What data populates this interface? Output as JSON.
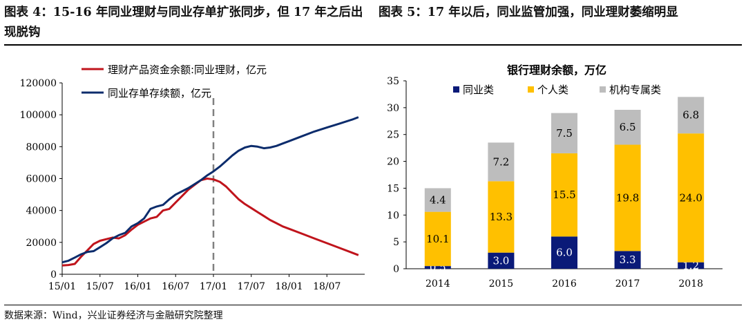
{
  "header": {
    "left_title": "图表 4：15-16 年同业理财与同业存单扩张同步，但 17 年之后出现脱钩",
    "right_title": "图表 5：17 年以后，同业监管加强，同业理财萎缩明显"
  },
  "footer": {
    "source": "数据来源：Wind，兴业证券经济与金融研究院整理"
  },
  "colors": {
    "red": "#c0141c",
    "navy": "#0c2c6c",
    "bar_navy": "#0a1a78",
    "yellow": "#ffc000",
    "gray": "#bdbdbd",
    "dashed": "#808080"
  },
  "chart_data": [
    {
      "type": "line",
      "title": "",
      "x_ticks": [
        "15/01",
        "15/07",
        "16/01",
        "16/07",
        "17/01",
        "17/07",
        "18/01",
        "18/07"
      ],
      "y_ticks": [
        "0",
        "20000",
        "40000",
        "60000",
        "80000",
        "100000",
        "120000"
      ],
      "ylim": [
        0,
        120000
      ],
      "xlim": [
        "2015-01",
        "2019-01"
      ],
      "vertical_marker": "17/01",
      "series": [
        {
          "name": "理财产品资金余额:同业理财，亿元",
          "color": "#c0141c",
          "points": [
            [
              "2015-01",
              5500
            ],
            [
              "2015-02",
              5800
            ],
            [
              "2015-03",
              6500
            ],
            [
              "2015-04",
              11000
            ],
            [
              "2015-05",
              15000
            ],
            [
              "2015-06",
              19000
            ],
            [
              "2015-07",
              21000
            ],
            [
              "2015-08",
              22000
            ],
            [
              "2015-09",
              23000
            ],
            [
              "2015-10",
              22500
            ],
            [
              "2015-11",
              24500
            ],
            [
              "2015-12",
              28000
            ],
            [
              "2016-01",
              31000
            ],
            [
              "2016-02",
              33000
            ],
            [
              "2016-03",
              35000
            ],
            [
              "2016-04",
              36000
            ],
            [
              "2016-05",
              40000
            ],
            [
              "2016-06",
              41000
            ],
            [
              "2016-07",
              45000
            ],
            [
              "2016-08",
              49000
            ],
            [
              "2016-09",
              53000
            ],
            [
              "2016-10",
              56000
            ],
            [
              "2016-11",
              59000
            ],
            [
              "2016-12",
              60000
            ],
            [
              "2017-01",
              59500
            ],
            [
              "2017-02",
              58000
            ],
            [
              "2017-03",
              55000
            ],
            [
              "2017-04",
              51000
            ],
            [
              "2017-05",
              47000
            ],
            [
              "2017-06",
              44000
            ],
            [
              "2017-07",
              41500
            ],
            [
              "2017-08",
              39000
            ],
            [
              "2017-09",
              36500
            ],
            [
              "2017-10",
              34000
            ],
            [
              "2017-11",
              32000
            ],
            [
              "2017-12",
              30000
            ],
            [
              "2018-01",
              28500
            ],
            [
              "2018-03",
              25500
            ],
            [
              "2018-05",
              22500
            ],
            [
              "2018-07",
              19500
            ],
            [
              "2018-09",
              16500
            ],
            [
              "2018-11",
              13500
            ],
            [
              "2018-12",
              12000
            ]
          ]
        },
        {
          "name": "同业存单存续额，亿元",
          "color": "#0c2c6c",
          "points": [
            [
              "2015-01",
              7500
            ],
            [
              "2015-02",
              8500
            ],
            [
              "2015-03",
              10500
            ],
            [
              "2015-04",
              12500
            ],
            [
              "2015-05",
              14000
            ],
            [
              "2015-06",
              14500
            ],
            [
              "2015-07",
              17000
            ],
            [
              "2015-08",
              19500
            ],
            [
              "2015-09",
              22500
            ],
            [
              "2015-10",
              24500
            ],
            [
              "2015-11",
              26000
            ],
            [
              "2015-12",
              30000
            ],
            [
              "2016-01",
              32000
            ],
            [
              "2016-02",
              35000
            ],
            [
              "2016-03",
              41000
            ],
            [
              "2016-04",
              42500
            ],
            [
              "2016-05",
              43500
            ],
            [
              "2016-06",
              47000
            ],
            [
              "2016-07",
              50000
            ],
            [
              "2016-08",
              52000
            ],
            [
              "2016-09",
              54000
            ],
            [
              "2016-10",
              56500
            ],
            [
              "2016-11",
              59000
            ],
            [
              "2016-12",
              62000
            ],
            [
              "2017-01",
              64500
            ],
            [
              "2017-02",
              67500
            ],
            [
              "2017-03",
              71000
            ],
            [
              "2017-04",
              74500
            ],
            [
              "2017-05",
              77500
            ],
            [
              "2017-06",
              79500
            ],
            [
              "2017-07",
              80500
            ],
            [
              "2017-08",
              80000
            ],
            [
              "2017-09",
              79000
            ],
            [
              "2017-10",
              79500
            ],
            [
              "2017-11",
              80500
            ],
            [
              "2017-12",
              82000
            ],
            [
              "2018-01",
              83500
            ],
            [
              "2018-03",
              86500
            ],
            [
              "2018-05",
              89500
            ],
            [
              "2018-07",
              92000
            ],
            [
              "2018-09",
              94500
            ],
            [
              "2018-11",
              97000
            ],
            [
              "2018-12",
              98500
            ]
          ]
        }
      ]
    },
    {
      "type": "bar",
      "title": "银行理财余额，万亿",
      "categories": [
        "2014",
        "2015",
        "2016",
        "2017",
        "2018"
      ],
      "ylim": [
        0,
        35
      ],
      "y_ticks": [
        "0",
        "5",
        "10",
        "15",
        "20",
        "25",
        "30",
        "35"
      ],
      "stacked": true,
      "legend_position": "top",
      "series": [
        {
          "name": "同业类",
          "color": "#0a1a78",
          "values": [
            0.5,
            3.0,
            6.0,
            3.3,
            1.2
          ],
          "labels": [
            "0.5",
            "3.0",
            "6.0",
            "3.3",
            "1.2"
          ]
        },
        {
          "name": "个人类",
          "color": "#ffc000",
          "values": [
            10.1,
            13.3,
            15.5,
            19.8,
            24.0
          ],
          "labels": [
            "10.1",
            "13.3",
            "15.5",
            "19.8",
            "24.0"
          ]
        },
        {
          "name": "机构专属类",
          "color": "#bdbdbd",
          "values": [
            4.4,
            7.2,
            7.5,
            6.5,
            6.8
          ],
          "labels": [
            "4.4",
            "7.2",
            "7.5",
            "6.5",
            "6.8"
          ]
        }
      ]
    }
  ]
}
